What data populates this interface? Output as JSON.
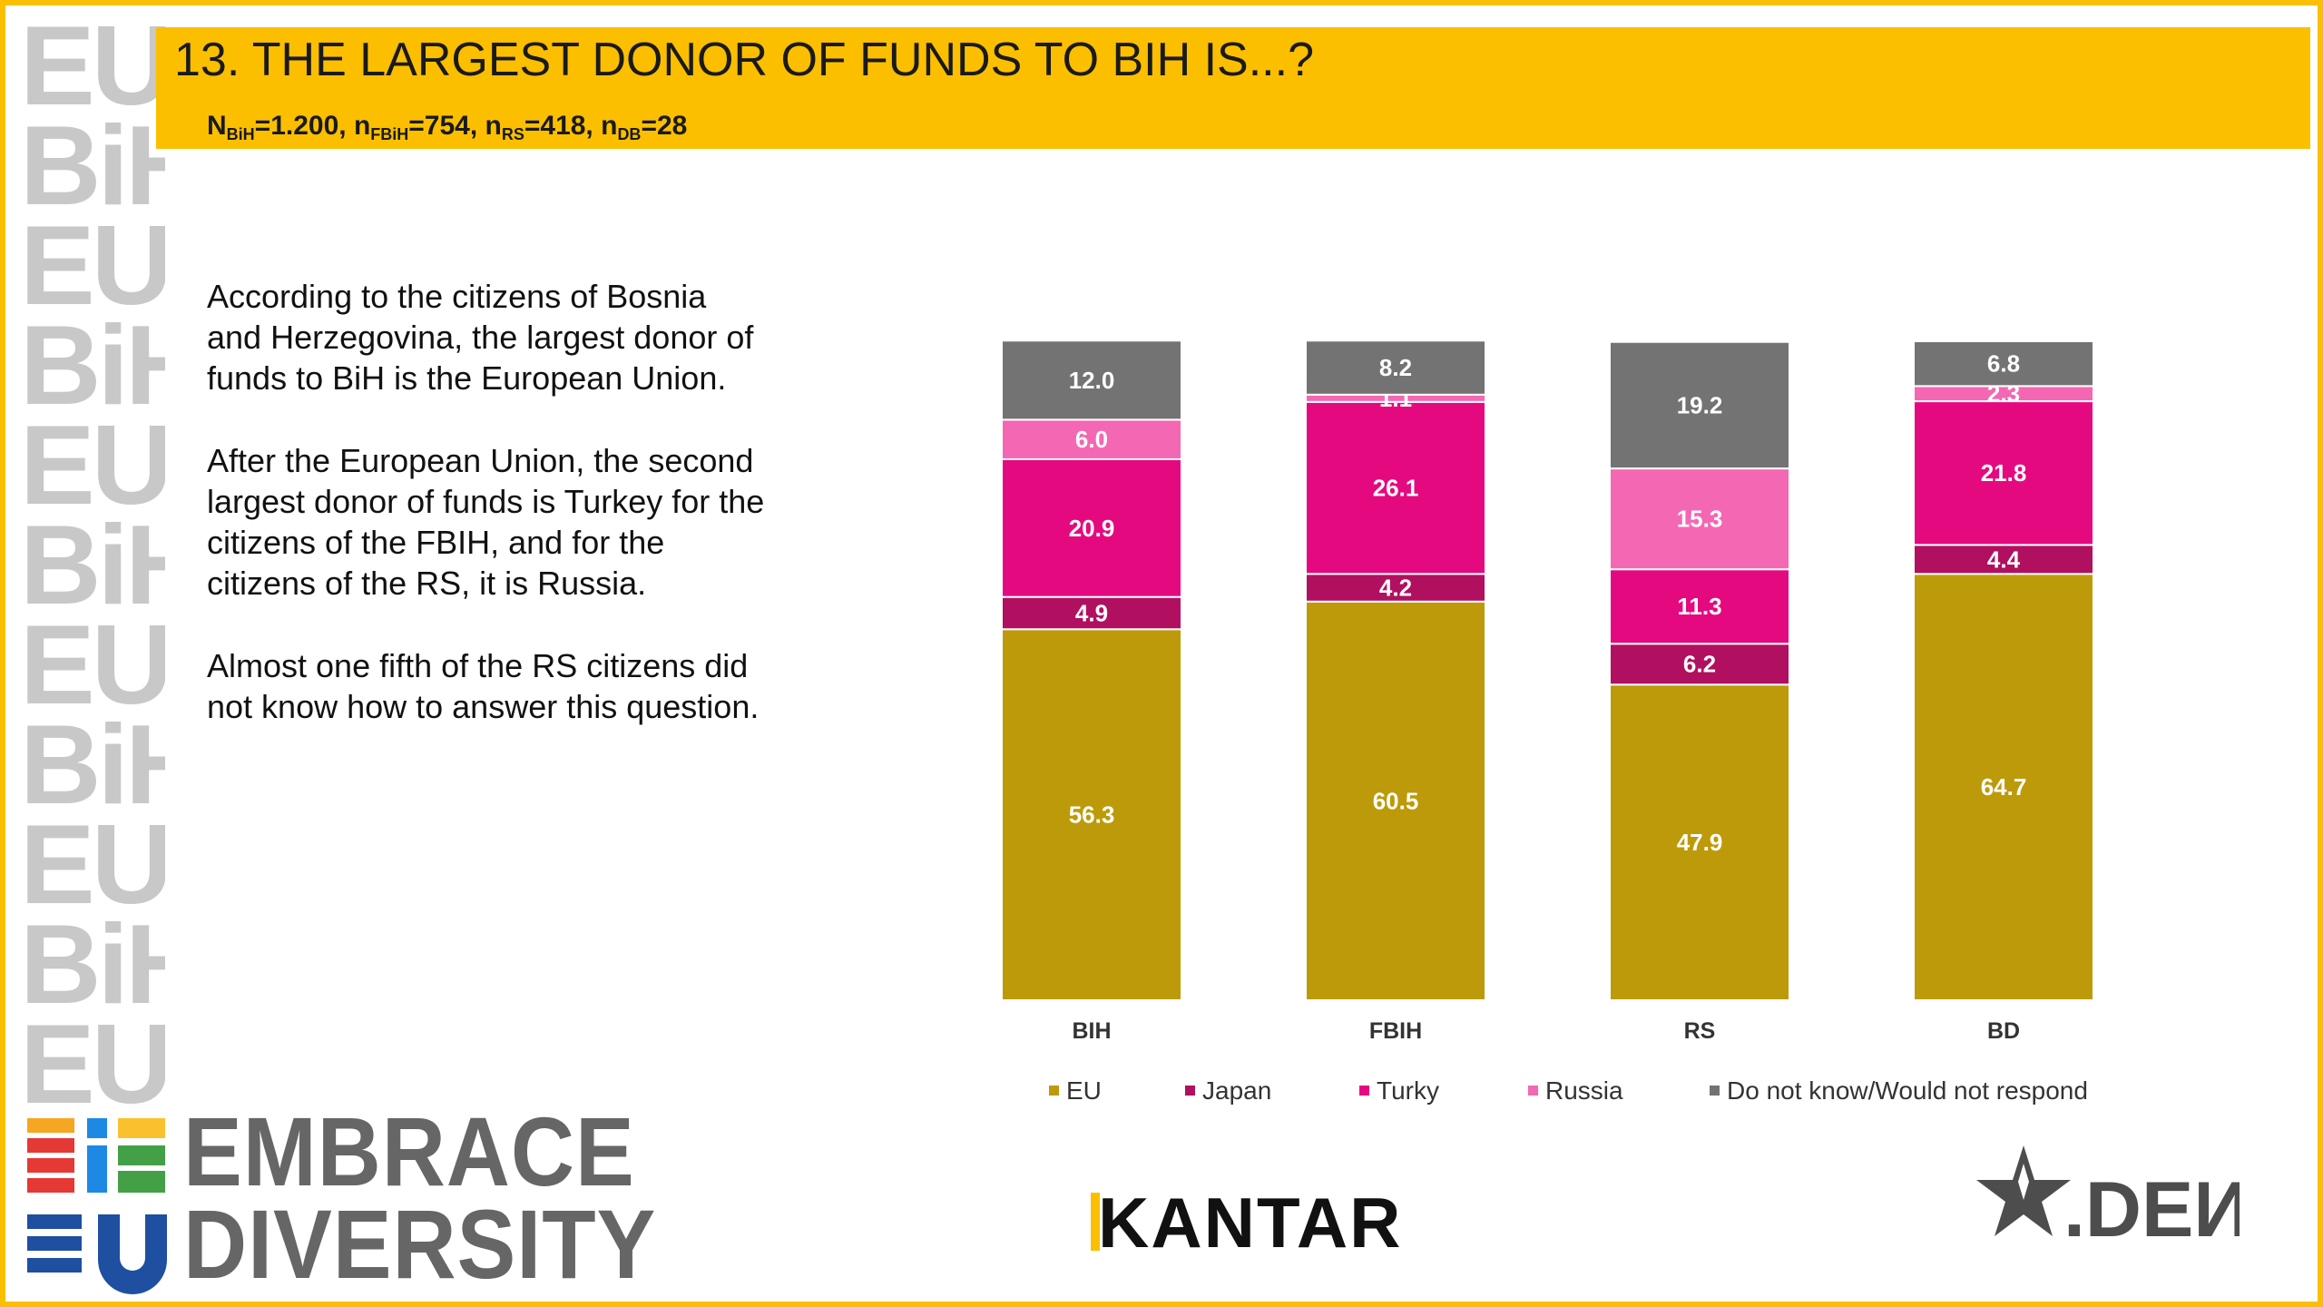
{
  "header": {
    "title": "13. THE LARGEST DONOR OF FUNDS TO BIH IS...?",
    "sample": [
      {
        "base": "N",
        "sub": "BiH",
        "rest": "=1.200, "
      },
      {
        "base": "n",
        "sub": "FBiH",
        "rest": "=754, "
      },
      {
        "base": "n",
        "sub": "RS",
        "rest": "=418, "
      },
      {
        "base": "n",
        "sub": "DB",
        "rest": "=28"
      }
    ]
  },
  "text": {
    "p1": "According to the citizens of Bosnia and Herzegovina, the largest donor of funds to BiH is the European Union.",
    "p2": "After the European Union, the second largest donor of funds is Turkey for the citizens of the FBIH, and for the citizens of the RS, it is Russia.",
    "p3": "Almost one fifth of the RS citizens did not know how to answer this question."
  },
  "chart_data": {
    "type": "bar",
    "stacked": true,
    "categories": [
      "BIH",
      "FBIH",
      "RS",
      "BD"
    ],
    "series": [
      {
        "name": "EU",
        "color": "#bd9a09",
        "values": [
          56.3,
          60.5,
          47.9,
          64.7
        ]
      },
      {
        "name": "Japan",
        "color": "#b0105f",
        "values": [
          4.9,
          4.2,
          6.2,
          4.4
        ]
      },
      {
        "name": "Turky",
        "color": "#e5097f",
        "values": [
          20.9,
          26.1,
          11.3,
          21.8
        ]
      },
      {
        "name": "Russia",
        "color": "#f467b3",
        "values": [
          6.0,
          1.1,
          15.3,
          2.3
        ]
      },
      {
        "name": "Do not know/Would not respond",
        "color": "#737373",
        "values": [
          12.0,
          8.2,
          19.2,
          6.8
        ]
      }
    ],
    "ylim": [
      0,
      100
    ],
    "legend_position": "bottom"
  },
  "logos": {
    "embrace_line1": "EMBRACE",
    "embrace_line2": "DIVERSITY",
    "kantar": "KANTAR",
    "iden": ".DEИ"
  }
}
